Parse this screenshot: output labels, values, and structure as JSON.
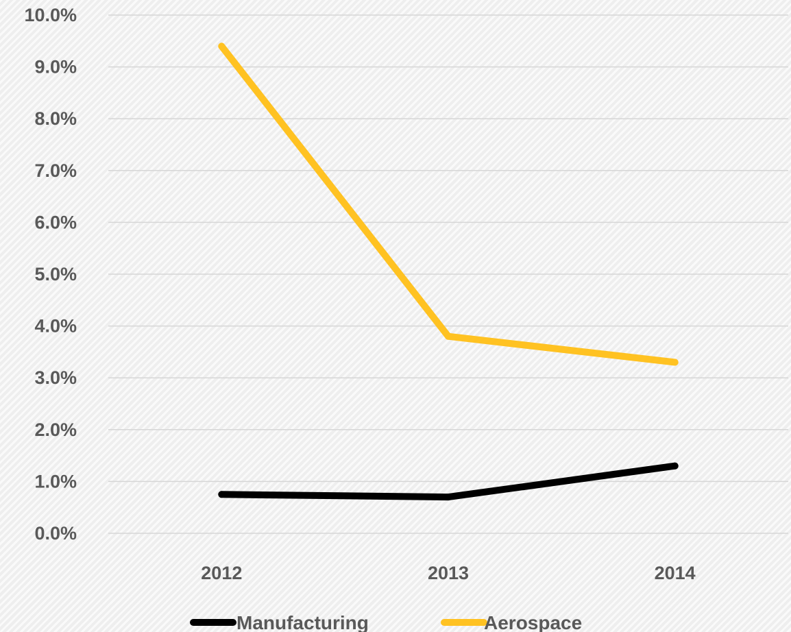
{
  "chart_data": {
    "type": "line",
    "title": "",
    "xlabel": "",
    "ylabel": "",
    "categories": [
      "2012",
      "2013",
      "2014"
    ],
    "ylim": [
      0,
      10
    ],
    "y_ticks": [
      "0.0%",
      "1.0%",
      "2.0%",
      "3.0%",
      "4.0%",
      "5.0%",
      "6.0%",
      "7.0%",
      "8.0%",
      "9.0%",
      "10.0%"
    ],
    "grid": true,
    "legend_position": "bottom",
    "series": [
      {
        "name": "Manufacturing",
        "values": [
          0.75,
          0.7,
          1.3
        ],
        "color": "#000000"
      },
      {
        "name": "Aerospace",
        "values": [
          9.4,
          3.8,
          3.3
        ],
        "color": "#FFC222"
      }
    ]
  }
}
